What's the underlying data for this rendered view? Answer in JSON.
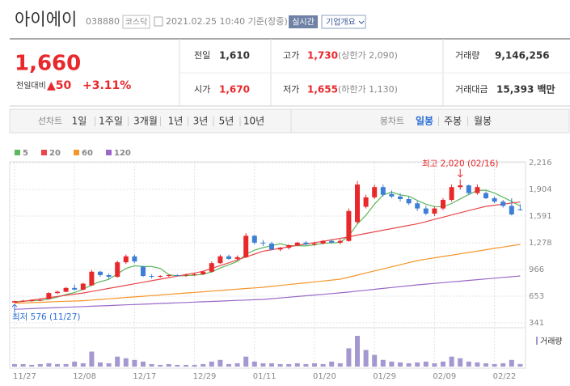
{
  "header": {
    "title": "아이에이",
    "code": "038880",
    "market": "코스닥",
    "time": "2021.02.25 10:40 기준(장중)",
    "realtime": "실시간",
    "overview": "기업개요"
  },
  "quote": {
    "price": "1,660",
    "change_label": "전일대비",
    "change": "▲50",
    "change_rate": "+3.11%",
    "cells": [
      {
        "label": "전일",
        "value": "1,610"
      },
      {
        "label": "고가",
        "value": "1,730",
        "note": "(상한가 2,090)"
      },
      {
        "label": "거래량",
        "value": "9,146,256"
      },
      {
        "label": "시가",
        "value": "1,670"
      },
      {
        "label": "저가",
        "value": "1,655",
        "note": "(하한가 1,130)"
      },
      {
        "label": "거래대금",
        "value": "15,393 백만"
      }
    ]
  },
  "tabs": {
    "line_label": "선차트",
    "line": [
      "1일",
      "1주일",
      "3개월",
      "1년",
      "3년",
      "5년",
      "10년"
    ],
    "candle_label": "봉차트",
    "candle": [
      "일봉",
      "주봉",
      "월봉"
    ]
  },
  "chart_data": {
    "type": "candlestick",
    "categories": [
      "11/27",
      null,
      null,
      null,
      null,
      null,
      null,
      "12/08",
      null,
      null,
      null,
      null,
      null,
      null,
      "12/17",
      null,
      null,
      null,
      null,
      null,
      null,
      "12/29",
      null,
      null,
      null,
      null,
      null,
      null,
      "01/11",
      null,
      null,
      null,
      null,
      null,
      null,
      "01/20",
      null,
      null,
      null,
      null,
      null,
      null,
      "01/29",
      null,
      null,
      null,
      null,
      null,
      null,
      "02/09",
      null,
      null,
      null,
      null,
      null,
      null,
      "02/22",
      null,
      null,
      null
    ],
    "open": [
      580,
      595,
      600,
      605,
      620,
      690,
      705,
      750,
      730,
      780,
      940,
      900,
      880,
      1050,
      1120,
      1000,
      890,
      880,
      890,
      900,
      895,
      905,
      910,
      940,
      1040,
      1120,
      1090,
      1110,
      1360,
      1280,
      1270,
      1200,
      1220,
      1250,
      1280,
      1260,
      1270,
      1300,
      1280,
      1300,
      1520,
      1700,
      1810,
      1930,
      1850,
      1820,
      1790,
      1740,
      1680,
      1620,
      1680,
      1780,
      1930,
      1950,
      1860,
      1860,
      1800,
      1760,
      1710,
      1670
    ],
    "high": [
      600,
      610,
      615,
      620,
      700,
      720,
      760,
      790,
      810,
      960,
      950,
      920,
      1070,
      1140,
      1140,
      1010,
      910,
      900,
      910,
      910,
      915,
      925,
      950,
      1060,
      1140,
      1140,
      1130,
      1390,
      1370,
      1310,
      1290,
      1230,
      1260,
      1290,
      1300,
      1290,
      1310,
      1320,
      1320,
      1680,
      2000,
      1840,
      1960,
      1960,
      1890,
      1860,
      1820,
      1770,
      1710,
      1700,
      1800,
      1960,
      2020,
      1960,
      1960,
      1880,
      1820,
      1780,
      1800,
      1730
    ],
    "low": [
      576,
      585,
      590,
      595,
      615,
      680,
      700,
      720,
      720,
      770,
      880,
      850,
      870,
      1030,
      1040,
      880,
      860,
      870,
      880,
      885,
      880,
      890,
      900,
      930,
      1030,
      1080,
      1070,
      1100,
      1260,
      1240,
      1190,
      1180,
      1200,
      1240,
      1250,
      1240,
      1260,
      1270,
      1260,
      1290,
      1500,
      1680,
      1790,
      1820,
      1800,
      1760,
      1720,
      1650,
      1600,
      1590,
      1660,
      1760,
      1900,
      1840,
      1840,
      1790,
      1740,
      1690,
      1600,
      1655
    ],
    "close": [
      595,
      600,
      605,
      610,
      690,
      705,
      750,
      730,
      800,
      940,
      900,
      880,
      1050,
      1120,
      1060,
      890,
      880,
      890,
      900,
      895,
      905,
      910,
      940,
      1040,
      1120,
      1090,
      1110,
      1360,
      1280,
      1270,
      1200,
      1220,
      1250,
      1280,
      1260,
      1270,
      1300,
      1280,
      1300,
      1650,
      1960,
      1810,
      1930,
      1840,
      1820,
      1790,
      1740,
      1680,
      1620,
      1680,
      1780,
      1930,
      1950,
      1860,
      1930,
      1800,
      1760,
      1710,
      1610,
      1660
    ],
    "up_color": "#e8282b",
    "down_color": "#3d7fd6",
    "series": [
      {
        "name": "5",
        "color": "#5cb85c",
        "values": [
          590,
          595,
          600,
          603,
          620,
          642,
          672,
          697,
          735,
          785,
          824,
          850,
          914,
          978,
          1010,
          1000,
          1000,
          978,
          904,
          891,
          894,
          900,
          910,
          938,
          983,
          1020,
          1060,
          1144,
          1192,
          1222,
          1244,
          1266,
          1244,
          1244,
          1242,
          1256,
          1272,
          1278,
          1282,
          1360,
          1498,
          1600,
          1730,
          1838,
          1872,
          1838,
          1824,
          1774,
          1730,
          1702,
          1700,
          1738,
          1792,
          1844,
          1890,
          1894,
          1860,
          1812,
          1762,
          1708
        ]
      },
      {
        "name": "20",
        "color": "#e8474a",
        "values": [
          580,
          594,
          608,
          622,
          636,
          650,
          664,
          677,
          690,
          708,
          726,
          744,
          762,
          780,
          798,
          816,
          834,
          852,
          870,
          888,
          906,
          924,
          945,
          978,
          1011,
          1044,
          1078,
          1112,
          1146,
          1180,
          1197,
          1214,
          1231,
          1248,
          1264,
          1280,
          1296,
          1313,
          1330,
          1349,
          1368,
          1387,
          1406,
          1425,
          1444,
          1463,
          1482,
          1500,
          1526,
          1552,
          1578,
          1604,
          1630,
          1655,
          1680,
          1705,
          1718,
          1730,
          1743,
          1755
        ]
      },
      {
        "name": "60",
        "color": "#f5962a",
        "values": [
          570,
          574,
          578,
          582,
          586,
          590,
          594,
          597,
          600,
          608,
          615,
          623,
          630,
          638,
          645,
          653,
          660,
          668,
          675,
          683,
          690,
          698,
          705,
          713,
          720,
          728,
          735,
          743,
          750,
          758,
          768,
          779,
          789,
          800,
          810,
          821,
          831,
          842,
          852,
          876,
          900,
          925,
          949,
          973,
          997,
          1021,
          1046,
          1070,
          1086,
          1102,
          1118,
          1133,
          1149,
          1165,
          1181,
          1197,
          1213,
          1228,
          1244,
          1260
        ]
      },
      {
        "name": "120",
        "color": "#9a68c8",
        "values": [
          500,
          504,
          508,
          512,
          516,
          520,
          524,
          528,
          532,
          536,
          540,
          544,
          548,
          552,
          556,
          560,
          564,
          568,
          572,
          576,
          580,
          584,
          588,
          592,
          596,
          600,
          604,
          608,
          612,
          616,
          624,
          633,
          641,
          650,
          658,
          667,
          675,
          684,
          692,
          702,
          713,
          723,
          734,
          744,
          755,
          765,
          776,
          786,
          795,
          803,
          812,
          821,
          829,
          838,
          847,
          855,
          864,
          873,
          881,
          890
        ]
      }
    ],
    "volume": {
      "name": "거래량",
      "color": "#a597cf",
      "values": [
        9000000,
        9000000,
        6000000,
        9000000,
        12000000,
        9000000,
        9000000,
        18000000,
        12000000,
        54000000,
        15000000,
        12000000,
        36000000,
        30000000,
        24000000,
        18000000,
        9000000,
        6000000,
        9000000,
        6000000,
        6000000,
        6000000,
        9000000,
        18000000,
        24000000,
        9000000,
        12000000,
        36000000,
        18000000,
        12000000,
        12000000,
        9000000,
        9000000,
        12000000,
        9000000,
        12000000,
        9000000,
        18000000,
        12000000,
        66000000,
        111000000,
        60000000,
        42000000,
        24000000,
        18000000,
        15000000,
        12000000,
        15000000,
        18000000,
        12000000,
        18000000,
        36000000,
        30000000,
        18000000,
        15000000,
        12000000,
        9000000,
        12000000,
        24000000,
        9146256
      ]
    },
    "ylim": [
      341,
      2216
    ],
    "yticks": [
      341,
      653,
      966,
      {
        "value": 1278,
        "label": "1,278"
      },
      {
        "value": 1591,
        "label": "1,591"
      },
      {
        "value": 1904,
        "label": "1,904"
      },
      {
        "value": 2216,
        "label": "2,216"
      }
    ],
    "grid": true,
    "high_label": "최고 2,020 (02/16)",
    "low_label": "최저 576 (11/27)"
  }
}
